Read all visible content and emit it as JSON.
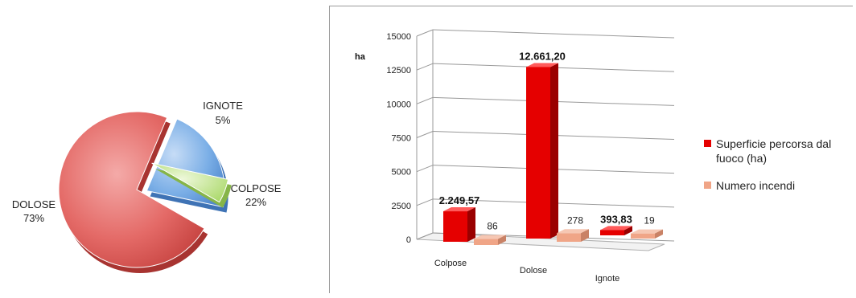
{
  "chart_data": [
    {
      "type": "pie",
      "categories": [
        "DOLOSE",
        "COLPOSE",
        "IGNOTE"
      ],
      "values": [
        73,
        22,
        5
      ],
      "labels": [
        "73%",
        "22%",
        "5%"
      ],
      "colors": [
        "#e25f5c",
        "#6ea4e2",
        "#bde47d"
      ],
      "exploded": true,
      "title": "",
      "legend": "none"
    },
    {
      "type": "bar",
      "three_d": true,
      "categories": [
        "Colpose",
        "Dolose",
        "Ignote"
      ],
      "series": [
        {
          "name": "Superficie percorsa dal fuoco (ha)",
          "values": [
            2249.57,
            12661.2,
            393.83
          ],
          "value_labels": [
            "2.249,57",
            "12.661,20",
            "393,83"
          ],
          "color": "#e50000"
        },
        {
          "name": "Numero incendi",
          "values": [
            86,
            278,
            19
          ],
          "value_labels": [
            "86",
            "278",
            "19"
          ],
          "color": "#f0a587"
        }
      ],
      "ylabel": "ha",
      "ylim": [
        0,
        15000
      ],
      "yticks": [
        "0",
        "2500",
        "5000",
        "7500",
        "10000",
        "12500",
        "15000"
      ],
      "grid": true,
      "legend": "right"
    }
  ]
}
